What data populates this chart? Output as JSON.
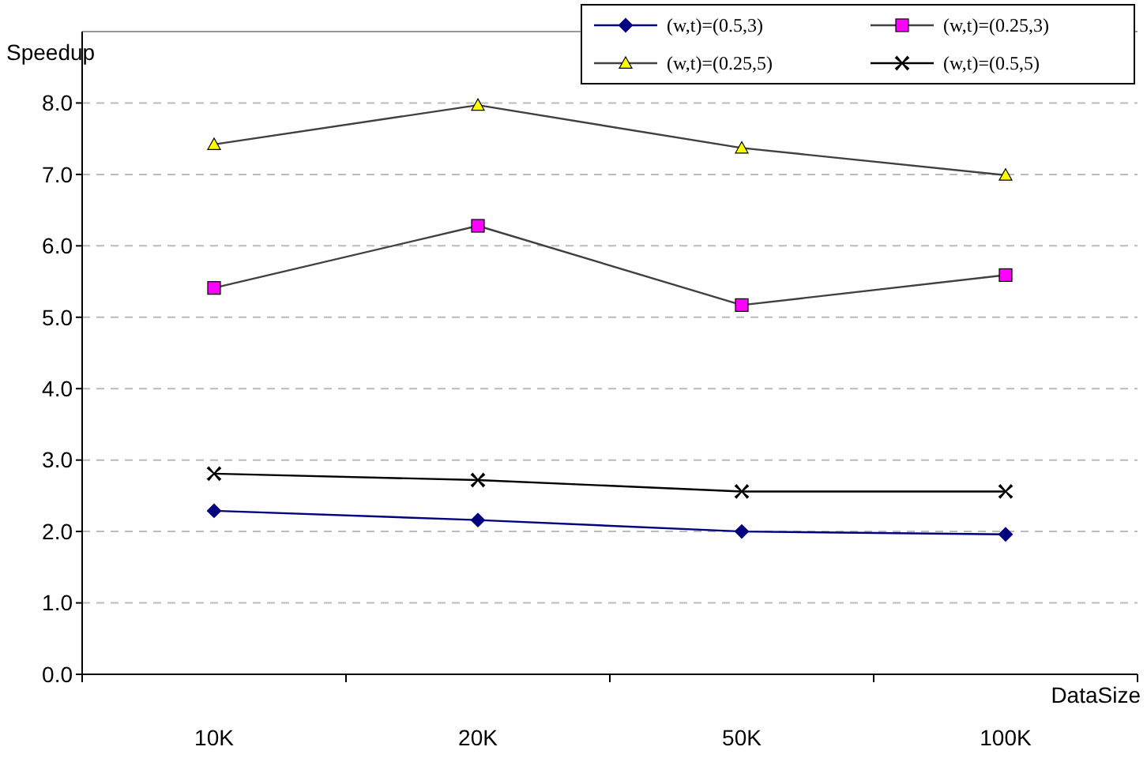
{
  "chart_data": {
    "type": "line",
    "xlabel": "DataSize",
    "ylabel": "Speedup",
    "categories": [
      "10K",
      "20K",
      "50K",
      "100K"
    ],
    "ylim": [
      0,
      9
    ],
    "yticks": [
      {
        "value": 0,
        "label": "0.0"
      },
      {
        "value": 1,
        "label": "1.0"
      },
      {
        "value": 2,
        "label": "2.0"
      },
      {
        "value": 3,
        "label": "3.0"
      },
      {
        "value": 4,
        "label": "4.0"
      },
      {
        "value": 5,
        "label": "5.0"
      },
      {
        "value": 6,
        "label": "6.0"
      },
      {
        "value": 7,
        "label": "7.0"
      },
      {
        "value": 8,
        "label": "8.0"
      }
    ],
    "grid": "y",
    "legend": "top right",
    "series": [
      {
        "name": "(w,t)=(0.5,3)",
        "color": "#000080",
        "marker": "diamond",
        "values": [
          2.29,
          2.16,
          2.0,
          1.96
        ]
      },
      {
        "name": "(w,t)=(0.25,3)",
        "color": "#ff00ff",
        "marker": "square",
        "values": [
          5.41,
          6.28,
          5.17,
          5.59
        ]
      },
      {
        "name": "(w,t)=(0.25,5)",
        "color": "#ffff00",
        "marker": "triangle",
        "values": [
          7.42,
          7.97,
          7.37,
          6.99
        ]
      },
      {
        "name": "(w,t)=(0.5,5)",
        "color": "#000000",
        "marker": "cross",
        "values": [
          2.81,
          2.72,
          2.56,
          2.56
        ]
      }
    ]
  }
}
